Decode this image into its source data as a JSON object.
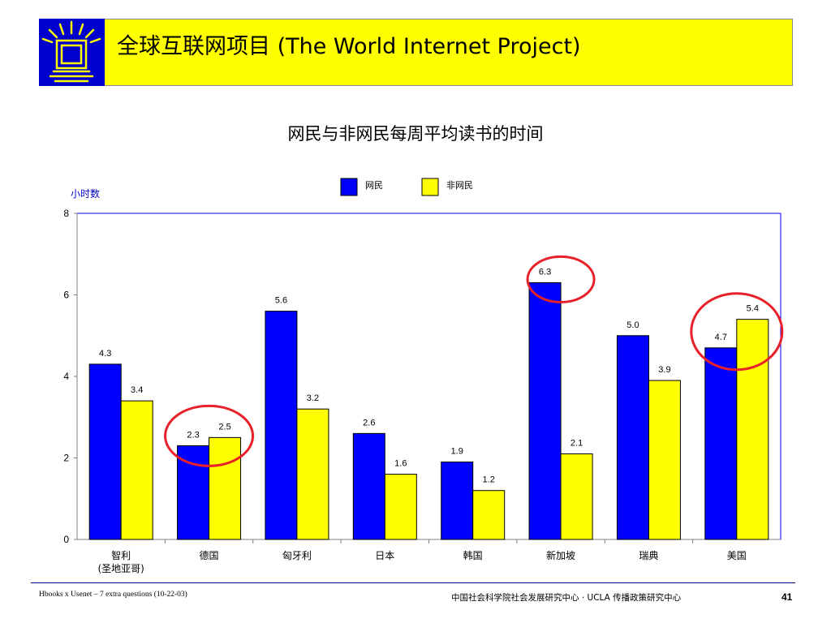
{
  "header": {
    "title": "全球互联网项目 (The World Internet Project)",
    "background_color": "#ffff00",
    "logo_color": "#0000cc",
    "logo_icon": "rising-sun-window-logo"
  },
  "chart_data": {
    "type": "bar",
    "title": "网民与非网民每周平均读书的时间",
    "ylabel": "小时数",
    "xlabel": "",
    "ylim": [
      0,
      8
    ],
    "yticks": [
      0,
      2,
      4,
      6,
      8
    ],
    "categories": [
      "智利\n(圣地亚哥)",
      "德国",
      "匈牙利",
      "日本",
      "韩国",
      "新加坡",
      "瑞典",
      "美国"
    ],
    "series": [
      {
        "name": "网民",
        "color": "#0000ff",
        "values": [
          4.3,
          2.3,
          5.6,
          2.6,
          1.9,
          6.3,
          5.0,
          4.7
        ]
      },
      {
        "name": "非网民",
        "color": "#ffff00",
        "values": [
          3.4,
          2.5,
          3.2,
          1.6,
          1.2,
          2.1,
          3.9,
          5.4
        ]
      }
    ],
    "data_labels": [
      [
        "4.3",
        "2.3",
        "5.6",
        "2.6",
        "1.9",
        "6.3",
        "5.0",
        "4.7"
      ],
      [
        "3.4",
        "2.5",
        "3.2",
        "1.6",
        "1.2",
        "2.1",
        "3.9",
        "5.4"
      ]
    ],
    "legend_position": "top-center",
    "grid": false,
    "highlighted_categories": [
      "德国",
      "新加坡",
      "美国"
    ],
    "highlight_color": "#e8202a"
  },
  "footer": {
    "left": "Hbooks x Usenet – 7 extra questions (10-22-03)",
    "center": "中国社会科学院社会发展研究中心 · UCLA 传播政策研究中心",
    "page": "41"
  }
}
